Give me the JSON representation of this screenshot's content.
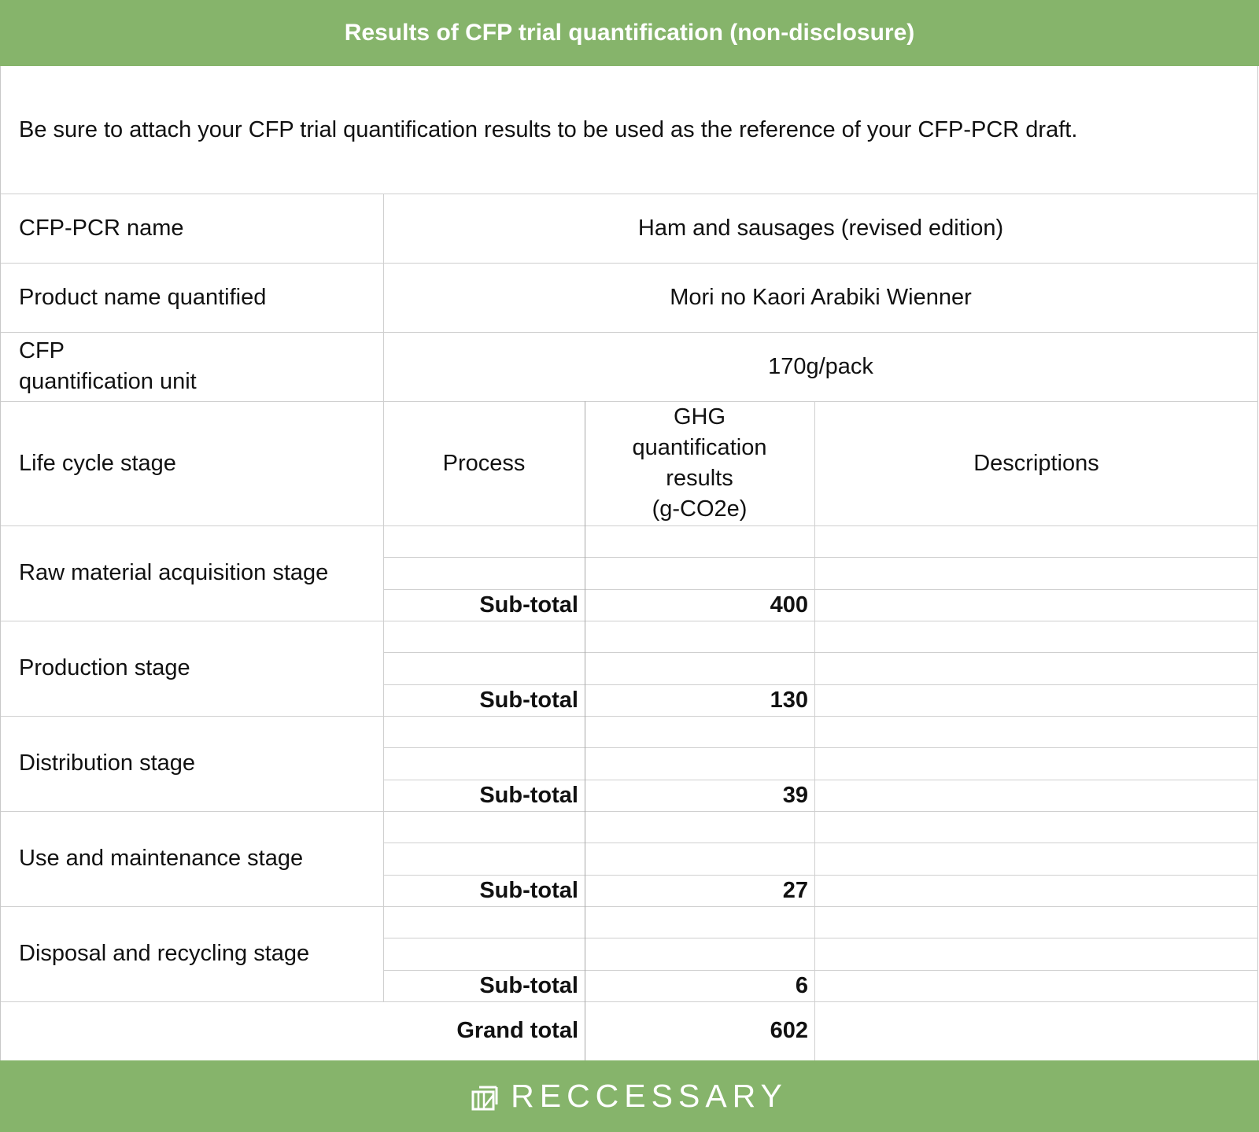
{
  "header": {
    "title": "Results of CFP trial quantification (non-disclosure)"
  },
  "note": "Be sure to attach your CFP trial quantification results to be used as the reference of your CFP-PCR draft.",
  "info_rows": [
    {
      "label": "CFP-PCR name",
      "value": "Ham and sausages (revised edition)"
    },
    {
      "label": "Product name quantified",
      "value": "Mori no Kaori Arabiki Wienner"
    },
    {
      "label_line1": "CFP",
      "label_line2": "quantification unit",
      "value": "170g/pack"
    }
  ],
  "columns": {
    "stage": "Life cycle stage",
    "process": "Process",
    "ghg_line1": "GHG",
    "ghg_line2": "quantification",
    "ghg_line3": "results",
    "ghg_line4": "(g-CO2e)",
    "descriptions": "Descriptions"
  },
  "stages": [
    {
      "name": "Raw material acquisition stage",
      "subtotal_label": "Sub-total",
      "subtotal": "400"
    },
    {
      "name": "Production stage",
      "subtotal_label": "Sub-total",
      "subtotal": "130"
    },
    {
      "name": "Distribution stage",
      "subtotal_label": "Sub-total",
      "subtotal": "39"
    },
    {
      "name": "Use and maintenance stage",
      "subtotal_label": "Sub-total",
      "subtotal": "27"
    },
    {
      "name": "Disposal and recycling stage",
      "subtotal_label": "Sub-total",
      "subtotal": "6"
    }
  ],
  "grand_total": {
    "label": "Grand total",
    "value": "602"
  },
  "footer": {
    "brand": "RECCESSARY",
    "brand_color": "#86b46b"
  }
}
